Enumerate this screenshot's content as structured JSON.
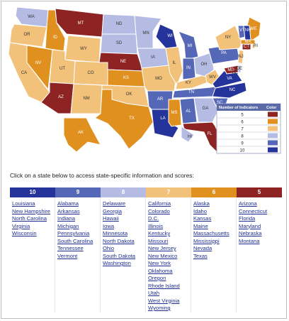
{
  "colors": {
    "10": "#25349a",
    "9": "#5568b8",
    "8": "#b5bce4",
    "7": "#f2c27a",
    "6": "#e0901e",
    "5": "#8e2323",
    "other": "#e6e6e6"
  },
  "legend": {
    "title": "Number of Indicators",
    "color_label": "Color",
    "levels": [
      "5",
      "6",
      "7",
      "8",
      "9",
      "10"
    ]
  },
  "map_labels": [
    "WA",
    "OR",
    "CA",
    "NV",
    "ID",
    "MT",
    "WY",
    "UT",
    "AZ",
    "CO",
    "NM",
    "ND",
    "SD",
    "NE",
    "KS",
    "OK",
    "TX",
    "MN",
    "IA",
    "MO",
    "AR",
    "LA",
    "WI",
    "IL",
    "MI",
    "IN",
    "KY",
    "TN",
    "MS",
    "AL",
    "OH",
    "WV",
    "PA",
    "NY",
    "VA",
    "NC",
    "SC",
    "GA",
    "FL",
    "ME",
    "VT",
    "NH",
    "MA",
    "RI",
    "CT",
    "NJ",
    "DE",
    "MD",
    "DC",
    "AK",
    "HI"
  ],
  "instruction": "Click on a state below to access state-specific information and scores:",
  "columns": [
    {
      "level": "10",
      "states": [
        "Louisiana",
        "New Hampshire",
        "North Carolina",
        "Virginia",
        "Wisconsin"
      ]
    },
    {
      "level": "9",
      "states": [
        "Alabama",
        "Arkansas",
        "Indiana",
        "Michigan",
        "Pennsylvania",
        "South Carolina",
        "Tennessee",
        "Vermont"
      ]
    },
    {
      "level": "8",
      "states": [
        "Delaware",
        "Georgia",
        "Hawaii",
        "Iowa",
        "Minnesota",
        "North Dakota",
        "Ohio",
        "South Dakota",
        "Washington"
      ]
    },
    {
      "level": "7",
      "states": [
        "California",
        "Colorado",
        "D.C.",
        "Illinois",
        "Kentucky",
        "Missouri",
        "New Jersey",
        "New Mexico",
        "New York",
        "Oklahoma",
        "Oregon",
        "Rhode Island",
        "Utah",
        "West Virginia",
        "Wyoming"
      ]
    },
    {
      "level": "6",
      "states": [
        "Alaska",
        "Idaho",
        "Kansas",
        "Maine",
        "Massachusetts",
        "Mississippi",
        "Nevada",
        "Texas"
      ]
    },
    {
      "level": "5",
      "states": [
        "Arizona",
        "Connecticut",
        "Florida",
        "Maryland",
        "Nebraska",
        "Montana"
      ]
    }
  ]
}
